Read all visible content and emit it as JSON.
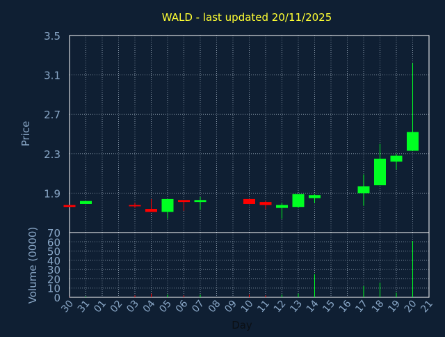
{
  "chart_data": [
    {
      "type": "candlestick",
      "title": "WALD - last updated 20/11/2025",
      "ylabel": "Price",
      "xlabel": "",
      "ylim": [
        1.5,
        3.5
      ],
      "yticks": [
        3.5,
        3.1,
        2.7,
        2.3,
        1.9
      ],
      "grid": true,
      "x_ticks": [
        "30",
        "31",
        "01",
        "02",
        "03",
        "04",
        "05",
        "06",
        "07",
        "08",
        "09",
        "10",
        "11",
        "12",
        "13",
        "14",
        "15",
        "16",
        "17",
        "18",
        "19",
        "20",
        "21"
      ],
      "candles": [
        {
          "day": "30",
          "open": 1.78,
          "close": 1.76,
          "high": 1.78,
          "low": 1.76
        },
        {
          "day": "31",
          "open": 1.79,
          "close": 1.82,
          "high": 1.82,
          "low": 1.79
        },
        {
          "day": "03",
          "open": 1.78,
          "close": 1.77,
          "high": 1.8,
          "low": 1.75
        },
        {
          "day": "04",
          "open": 1.74,
          "close": 1.71,
          "high": 1.84,
          "low": 1.71
        },
        {
          "day": "05",
          "open": 1.71,
          "close": 1.84,
          "high": 1.84,
          "low": 1.64
        },
        {
          "day": "06",
          "open": 1.83,
          "close": 1.81,
          "high": 1.83,
          "low": 1.72
        },
        {
          "day": "07",
          "open": 1.81,
          "close": 1.83,
          "high": 1.86,
          "low": 1.73
        },
        {
          "day": "10",
          "open": 1.84,
          "close": 1.79,
          "high": 1.84,
          "low": 1.79
        },
        {
          "day": "11",
          "open": 1.81,
          "close": 1.78,
          "high": 1.82,
          "low": 1.74
        },
        {
          "day": "12",
          "open": 1.75,
          "close": 1.78,
          "high": 1.8,
          "low": 1.64
        },
        {
          "day": "13",
          "open": 1.76,
          "close": 1.89,
          "high": 1.89,
          "low": 1.75
        },
        {
          "day": "14",
          "open": 1.85,
          "close": 1.88,
          "high": 1.89,
          "low": 1.8
        },
        {
          "day": "17",
          "open": 1.9,
          "close": 1.97,
          "high": 2.09,
          "low": 1.77
        },
        {
          "day": "18",
          "open": 1.98,
          "close": 2.25,
          "high": 2.4,
          "low": 1.98
        },
        {
          "day": "19",
          "open": 2.22,
          "close": 2.28,
          "high": 2.3,
          "low": 2.14
        },
        {
          "day": "20",
          "open": 2.33,
          "close": 2.52,
          "high": 3.22,
          "low": 2.33
        }
      ]
    },
    {
      "type": "bar",
      "ylabel": "Volume (0000)",
      "xlabel": "Day",
      "ylim": [
        0,
        70
      ],
      "yticks": [
        0,
        10,
        20,
        30,
        40,
        50,
        60,
        70
      ],
      "grid": true,
      "x_ticks": [
        "30",
        "31",
        "01",
        "02",
        "03",
        "04",
        "05",
        "06",
        "07",
        "08",
        "09",
        "10",
        "11",
        "12",
        "13",
        "14",
        "15",
        "16",
        "17",
        "18",
        "19",
        "20",
        "21"
      ],
      "bars": [
        {
          "day": "30",
          "value": 0.5,
          "direction": "down"
        },
        {
          "day": "31",
          "value": 1,
          "direction": "up"
        },
        {
          "day": "03",
          "value": 2,
          "direction": "down"
        },
        {
          "day": "04",
          "value": 4,
          "direction": "down"
        },
        {
          "day": "05",
          "value": 3,
          "direction": "up"
        },
        {
          "day": "06",
          "value": 2,
          "direction": "down"
        },
        {
          "day": "07",
          "value": 3,
          "direction": "up"
        },
        {
          "day": "10",
          "value": 3,
          "direction": "down"
        },
        {
          "day": "11",
          "value": 2,
          "direction": "down"
        },
        {
          "day": "12",
          "value": 3,
          "direction": "up"
        },
        {
          "day": "13",
          "value": 4,
          "direction": "up"
        },
        {
          "day": "14",
          "value": 25,
          "direction": "up"
        },
        {
          "day": "17",
          "value": 12,
          "direction": "up"
        },
        {
          "day": "18",
          "value": 16,
          "direction": "up"
        },
        {
          "day": "19",
          "value": 5,
          "direction": "up"
        },
        {
          "day": "20",
          "value": 61,
          "direction": "up"
        }
      ]
    }
  ],
  "colors": {
    "background": "#0f1f33",
    "up": "#00ff22",
    "down": "#ff0000",
    "title": "#ffff33",
    "axis_text": "#8aa8c8",
    "grid": "#7f8fa0"
  }
}
